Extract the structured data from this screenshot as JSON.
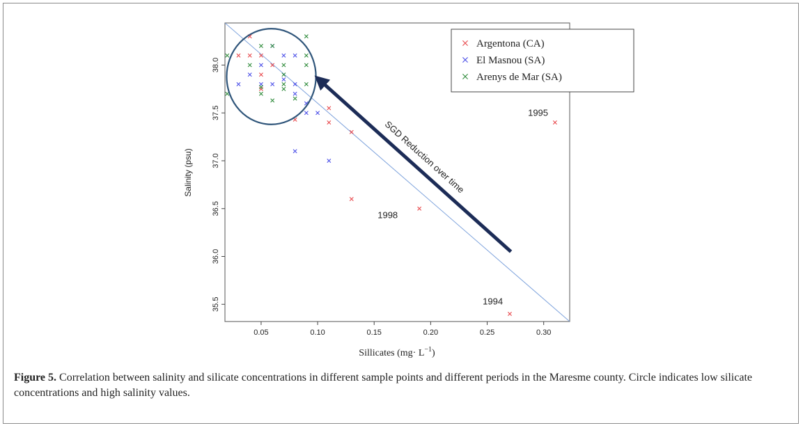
{
  "chart_data": {
    "type": "scatter",
    "xlabel": "Sillicates (mg· L",
    "xlabel_sup": "−1",
    "xlabel_close": ")",
    "ylabel": "Salinity (psu)",
    "xlim": [
      0.018,
      0.323
    ],
    "ylim": [
      35.32,
      38.44
    ],
    "x_ticks": [
      0.05,
      0.1,
      0.15,
      0.2,
      0.25,
      0.3
    ],
    "x_tick_labels": [
      "0.05",
      "0.10",
      "0.15",
      "0.20",
      "0.25",
      "0.30"
    ],
    "y_ticks": [
      35.5,
      36.0,
      36.5,
      37.0,
      37.5,
      38.0
    ],
    "y_tick_labels": [
      "35.5",
      "36.0",
      "36.5",
      "37.0",
      "37.5",
      "38.0"
    ],
    "grid": false,
    "legend_position": "top-right",
    "series": [
      {
        "name": "Argentona (CA)",
        "color": "#e8484c",
        "points": [
          [
            0.03,
            38.1
          ],
          [
            0.04,
            38.3
          ],
          [
            0.04,
            38.1
          ],
          [
            0.05,
            38.1
          ],
          [
            0.05,
            37.9
          ],
          [
            0.05,
            37.75
          ],
          [
            0.06,
            38.0
          ],
          [
            0.08,
            37.43
          ],
          [
            0.11,
            37.55
          ],
          [
            0.11,
            37.4
          ],
          [
            0.13,
            37.3
          ],
          [
            0.13,
            36.6
          ],
          [
            0.19,
            36.5
          ],
          [
            0.27,
            35.4
          ],
          [
            0.31,
            37.4
          ]
        ]
      },
      {
        "name": "El Masnou (SA)",
        "color": "#4a4ee8",
        "points": [
          [
            0.03,
            37.8
          ],
          [
            0.04,
            37.9
          ],
          [
            0.05,
            38.0
          ],
          [
            0.05,
            37.8
          ],
          [
            0.06,
            37.8
          ],
          [
            0.06,
            38.2
          ],
          [
            0.07,
            38.1
          ],
          [
            0.07,
            37.85
          ],
          [
            0.08,
            38.1
          ],
          [
            0.08,
            37.8
          ],
          [
            0.08,
            37.7
          ],
          [
            0.08,
            37.1
          ],
          [
            0.09,
            37.6
          ],
          [
            0.09,
            37.5
          ],
          [
            0.1,
            37.5
          ],
          [
            0.11,
            37.0
          ]
        ]
      },
      {
        "name": "Arenys de Mar (SA)",
        "color": "#2e8b3a",
        "points": [
          [
            0.02,
            38.1
          ],
          [
            0.02,
            37.7
          ],
          [
            0.04,
            38.0
          ],
          [
            0.05,
            38.2
          ],
          [
            0.05,
            37.77
          ],
          [
            0.05,
            37.7
          ],
          [
            0.06,
            38.2
          ],
          [
            0.06,
            37.63
          ],
          [
            0.07,
            37.9
          ],
          [
            0.07,
            37.8
          ],
          [
            0.07,
            37.75
          ],
          [
            0.07,
            38.0
          ],
          [
            0.08,
            37.65
          ],
          [
            0.09,
            38.3
          ],
          [
            0.09,
            38.1
          ],
          [
            0.09,
            38.0
          ],
          [
            0.09,
            37.8
          ]
        ]
      }
    ],
    "trend_line": {
      "color": "#7da2dc",
      "points": [
        [
          0.018,
          38.44
        ],
        [
          0.323,
          35.32
        ]
      ]
    },
    "highlight_circle": {
      "color": "#2f557a",
      "center": [
        0.059,
        37.88
      ],
      "rx_data": 0.0395,
      "ry_data": 0.5
    },
    "annotations": [
      {
        "text": "1995",
        "x": 0.295,
        "y": 37.47
      },
      {
        "text": "1998",
        "x": 0.162,
        "y": 36.4
      },
      {
        "text": "1994",
        "x": 0.255,
        "y": 35.5
      }
    ],
    "arrow": {
      "label": "SGD Reduction over time",
      "color": "#1c2c57",
      "from": [
        0.271,
        36.05
      ],
      "to": [
        0.103,
        37.83
      ]
    }
  },
  "caption": {
    "label": "Figure 5.",
    "text": " Correlation between salinity and silicate concentrations in different sample points and different periods in the Maresme county. Circle indicates low silicate concentrations and high salinity values."
  }
}
